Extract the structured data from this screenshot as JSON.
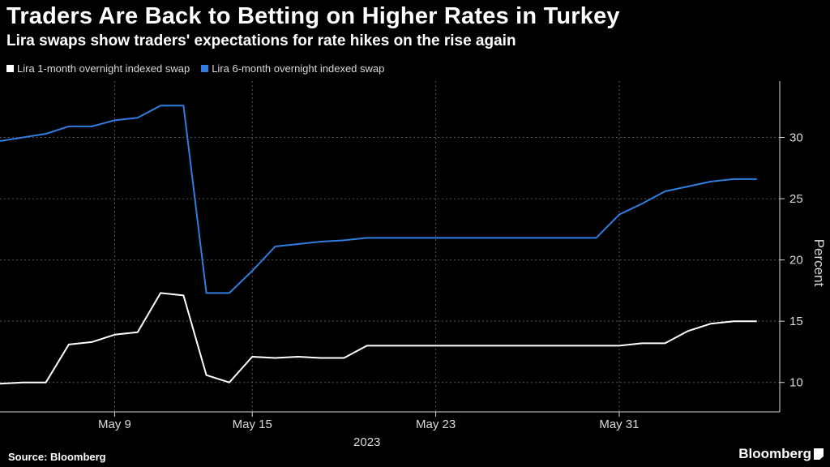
{
  "header": {
    "title": "Traders Are Back to Betting on Higher Rates in Turkey",
    "subtitle": "Lira swaps show traders' expectations for rate hikes on the rise again"
  },
  "footer": {
    "source": "Source: Bloomberg",
    "brand": "Bloomberg"
  },
  "colors": {
    "background": "#000000",
    "series_1m": "#ffffff",
    "series_6m": "#2f7ee0",
    "grid": "#555555",
    "text": "#d9d9d9"
  },
  "chart_data": {
    "type": "line",
    "title": "Traders Are Back to Betting on Higher Rates in Turkey",
    "subtitle": "Lira swaps show traders' expectations for rate hikes on the rise again",
    "ylabel": "Percent",
    "xlabel": "",
    "x_year_label": "2023",
    "x_tick_labels": [
      "May 9",
      "May 15",
      "May 23",
      "May 31"
    ],
    "x_tick_dates": [
      "2023-05-09",
      "2023-05-15",
      "2023-05-23",
      "2023-05-31"
    ],
    "y_ticks": [
      10,
      15,
      20,
      25,
      30
    ],
    "ylim": [
      7.6,
      34.6
    ],
    "xlim": [
      "2023-05-04",
      "2023-06-07"
    ],
    "grid": true,
    "legend_position": "top-left",
    "x": [
      "2023-05-04",
      "2023-05-05",
      "2023-05-06",
      "2023-05-07",
      "2023-05-08",
      "2023-05-09",
      "2023-05-10",
      "2023-05-11",
      "2023-05-12",
      "2023-05-13",
      "2023-05-14",
      "2023-05-15",
      "2023-05-16",
      "2023-05-17",
      "2023-05-18",
      "2023-05-19",
      "2023-05-20",
      "2023-05-21",
      "2023-05-22",
      "2023-05-23",
      "2023-05-24",
      "2023-05-25",
      "2023-05-26",
      "2023-05-27",
      "2023-05-28",
      "2023-05-29",
      "2023-05-30",
      "2023-05-31",
      "2023-06-01",
      "2023-06-02",
      "2023-06-03",
      "2023-06-04",
      "2023-06-05",
      "2023-06-06"
    ],
    "series": [
      {
        "name": "Lira 1-month overnight indexed swap",
        "color": "#ffffff",
        "values": [
          9.9,
          10.0,
          10.0,
          13.1,
          13.3,
          13.9,
          14.1,
          17.3,
          17.1,
          10.6,
          10.0,
          12.1,
          12.0,
          12.1,
          12.0,
          12.0,
          13.0,
          13.0,
          13.0,
          13.0,
          13.0,
          13.0,
          13.0,
          13.0,
          13.0,
          13.0,
          13.0,
          13.0,
          13.2,
          13.2,
          14.2,
          14.8,
          15.0,
          15.0
        ]
      },
      {
        "name": "Lira 6-month overnight indexed swap",
        "color": "#2f7ee0",
        "values": [
          29.7,
          30.0,
          30.3,
          30.9,
          30.9,
          31.4,
          31.6,
          32.6,
          32.6,
          17.3,
          17.3,
          19.1,
          21.1,
          21.3,
          21.5,
          21.6,
          21.8,
          21.8,
          21.8,
          21.8,
          21.8,
          21.8,
          21.8,
          21.8,
          21.8,
          21.8,
          21.8,
          23.7,
          24.6,
          25.6,
          26.0,
          26.4,
          26.6,
          26.6
        ]
      }
    ]
  }
}
